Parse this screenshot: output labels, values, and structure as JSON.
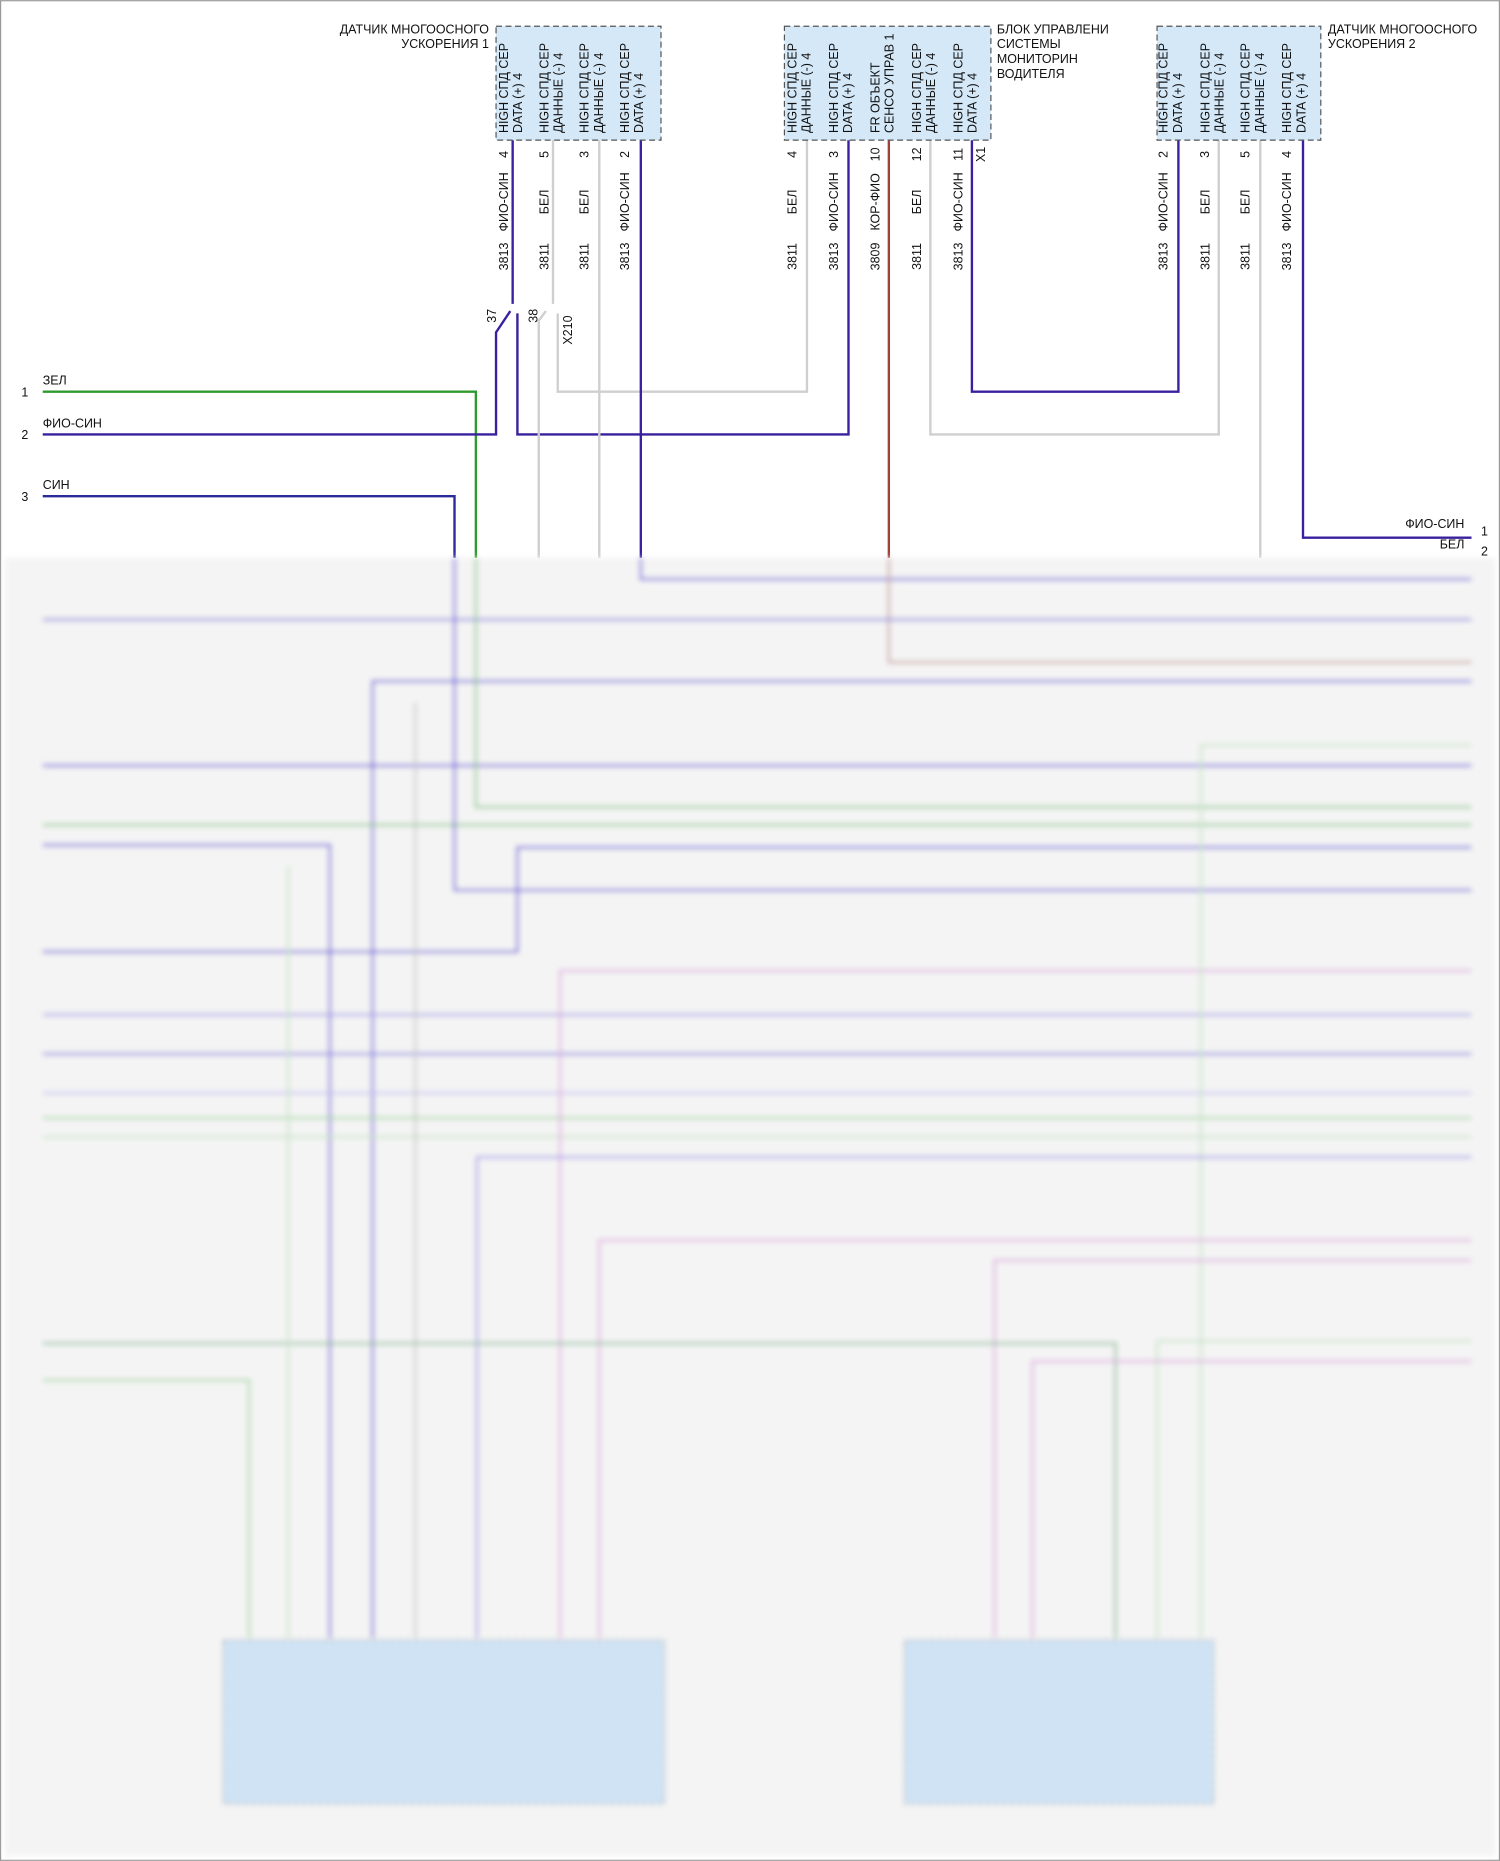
{
  "components": [
    {
      "label": [
        "ДАТЧИК МНОГООСНОГО",
        "УСКОРЕНИЯ 1"
      ],
      "pins": [
        {
          "name": [
            "HIGH СПД СЕР",
            "DATA (+) 4"
          ],
          "number": 4,
          "wire_color": "ФИО-СИН",
          "circuit": 3813
        },
        {
          "name": [
            "HIGH СПД СЕР",
            "ДАННЫЕ (-) 4"
          ],
          "number": 5,
          "wire_color": "БЕЛ",
          "circuit": 3811
        },
        {
          "name": [
            "HIGH СПД СЕР",
            "ДАННЫЕ (-) 4"
          ],
          "number": 3,
          "wire_color": "БЕЛ",
          "circuit": 3811
        },
        {
          "name": [
            "HIGH СПД СЕР",
            "DATA (+) 4"
          ],
          "number": 2,
          "wire_color": "ФИО-СИН",
          "circuit": 3813
        }
      ]
    },
    {
      "label": [
        "БЛОК УПРАВЛЕНИ",
        "СИСТЕМЫ",
        "МОНИТОРИН",
        "ВОДИТЕЛЯ"
      ],
      "pins": [
        {
          "name": [
            "HIGH СПД СЕР",
            "ДАННЫЕ (-) 4"
          ],
          "number": 4,
          "wire_color": "БЕЛ",
          "circuit": 3811
        },
        {
          "name": [
            "HIGH СПД СЕР",
            "DATA (+) 4"
          ],
          "number": 3,
          "wire_color": "ФИО-СИН",
          "circuit": 3813
        },
        {
          "name": [
            "FR ОБЪЕКТ",
            "СЕНСО УПРАВ 1"
          ],
          "number": 10,
          "wire_color": "КОР-ФИО",
          "circuit": 3809
        },
        {
          "name": [
            "HIGH СПД СЕР",
            "ДАННЫЕ (-) 4"
          ],
          "number": 12,
          "wire_color": "БЕЛ",
          "circuit": 3811
        },
        {
          "name": [
            "HIGH СПД СЕР",
            "DATA (+) 4"
          ],
          "number": 11,
          "wire_color": "ФИО-СИН",
          "circuit": 3813
        }
      ]
    },
    {
      "label": [
        "ДАТЧИК МНОГООСНОГО",
        "УСКОРЕНИЯ 2"
      ],
      "pins": [
        {
          "name": [
            "HIGH СПД СЕР",
            "DATA (+) 4"
          ],
          "number": 2,
          "wire_color": "ФИО-СИН",
          "circuit": 3813
        },
        {
          "name": [
            "HIGH СПД СЕР",
            "ДАННЫЕ (-) 4"
          ],
          "number": 3,
          "wire_color": "БЕЛ",
          "circuit": 3811
        },
        {
          "name": [
            "HIGH СПД СЕР",
            "ДАННЫЕ (-) 4"
          ],
          "number": 5,
          "wire_color": "БЕЛ",
          "circuit": 3811
        },
        {
          "name": [
            "HIGH СПД СЕР",
            "DATA (+) 4"
          ],
          "number": 4,
          "wire_color": "ФИО-СИН",
          "circuit": 3813
        }
      ]
    }
  ],
  "connectors": [
    "37",
    "38",
    "X210",
    "X1"
  ],
  "left_terminals": [
    {
      "number": 1,
      "wire_color": "ЗЕЛ"
    },
    {
      "number": 2,
      "wire_color": "ФИО-СИН"
    },
    {
      "number": 3,
      "wire_color": "СИН"
    }
  ],
  "right_terminals": [
    {
      "number": 1,
      "wire_color": "ФИО-СИН"
    },
    {
      "number": 2,
      "wire_color": "БЕЛ"
    }
  ]
}
